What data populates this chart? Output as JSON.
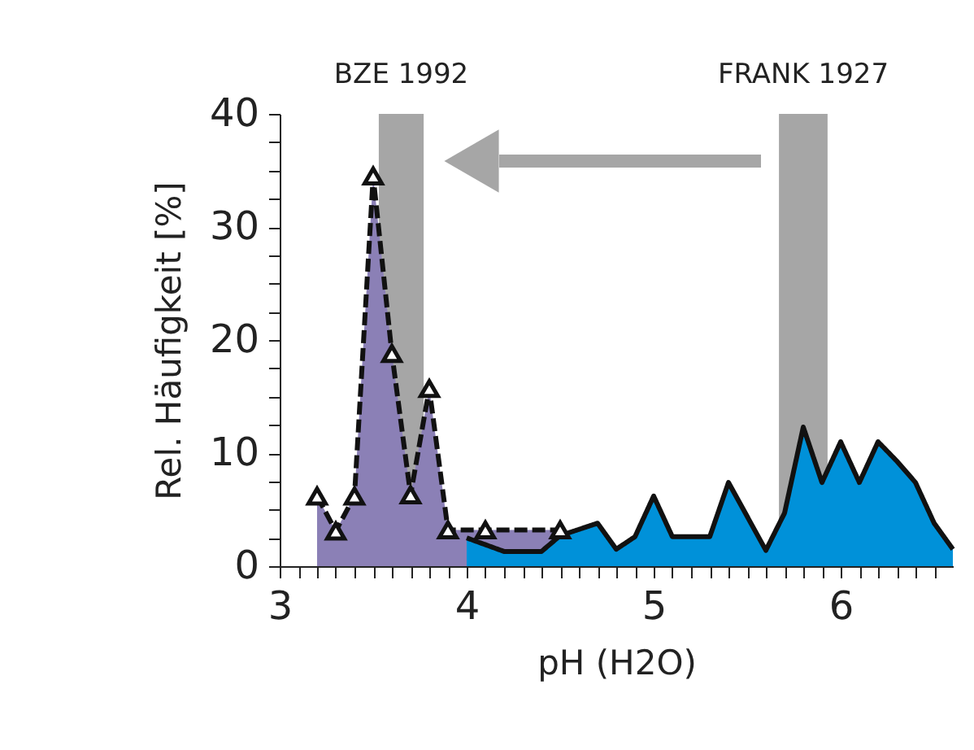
{
  "chart_data": {
    "type": "area",
    "xlabel": "pH (H2O)",
    "ylabel": "Rel. Häufigkeit [%]",
    "xlim": [
      3,
      6.6
    ],
    "xticks": [
      3,
      {
        "value": 3.1,
        "label": null
      },
      {
        "value": 3.2,
        "label": null
      },
      {
        "value": 3.3,
        "label": null
      },
      {
        "value": 3.4,
        "label": null
      },
      {
        "value": 3.5,
        "label": null
      },
      {
        "value": 3.6,
        "label": null
      },
      {
        "value": 3.7,
        "label": null
      },
      {
        "value": 3.8,
        "label": null
      },
      {
        "value": 3.9,
        "label": null
      },
      4,
      {
        "value": 4.1,
        "label": null
      },
      {
        "value": 4.2,
        "label": null
      },
      {
        "value": 4.3,
        "label": null
      },
      {
        "value": 4.4,
        "label": null
      },
      {
        "value": 4.5,
        "label": null
      },
      {
        "value": 4.6,
        "label": null
      },
      {
        "value": 4.7,
        "label": null
      },
      {
        "value": 4.8,
        "label": null
      },
      {
        "value": 4.9,
        "label": null
      },
      5,
      {
        "value": 5.1,
        "label": null
      },
      {
        "value": 5.2,
        "label": null
      },
      {
        "value": 5.3,
        "label": null
      },
      {
        "value": 5.4,
        "label": null
      },
      {
        "value": 5.5,
        "label": null
      },
      {
        "value": 5.6,
        "label": null
      },
      {
        "value": 5.7,
        "label": null
      },
      {
        "value": 5.8,
        "label": null
      },
      {
        "value": 5.9,
        "label": null
      },
      6,
      {
        "value": 6.1,
        "label": null
      },
      {
        "value": 6.2,
        "label": null
      },
      {
        "value": 6.3,
        "label": null
      },
      {
        "value": 6.4,
        "label": null
      },
      {
        "value": 6.5,
        "label": null
      }
    ],
    "ylim": [
      0,
      40
    ],
    "yticks": [
      0,
      {
        "value": 2.5,
        "label": null
      },
      {
        "value": 5,
        "label": null
      },
      {
        "value": 7.5,
        "label": null
      },
      10,
      {
        "value": 12.5,
        "label": null
      },
      {
        "value": 15,
        "label": null
      },
      {
        "value": 17.5,
        "label": null
      },
      20,
      {
        "value": 22.5,
        "label": null
      },
      {
        "value": 25,
        "label": null
      },
      {
        "value": 27.5,
        "label": null
      },
      30,
      {
        "value": 32.5,
        "label": null
      },
      {
        "value": 35,
        "label": null
      },
      {
        "value": 37.5,
        "label": null
      },
      40
    ],
    "grid": false,
    "series": [
      {
        "color": "#8b80b6",
        "marker": "triangle",
        "line_style": "dashed",
        "x": [
          3.2,
          3.3,
          3.4,
          3.5,
          3.6,
          3.7,
          3.8,
          3.9,
          4.1,
          4.5
        ],
        "values": [
          6.2,
          3.1,
          6.2,
          34.5,
          18.8,
          6.3,
          15.7,
          3.2,
          3.2,
          3.2
        ]
      },
      {
        "color": "#0091d9",
        "marker": "none",
        "line_style": "solid",
        "x": [
          4.0,
          4.2,
          4.4,
          4.5,
          4.7,
          4.8,
          4.9,
          5.0,
          5.1,
          5.3,
          5.4,
          5.6,
          5.7,
          5.8,
          5.9,
          6.0,
          6.1,
          6.2,
          6.3,
          6.4,
          6.5,
          6.6
        ],
        "values": [
          2.5,
          1.3,
          1.3,
          2.7,
          3.8,
          1.5,
          2.6,
          6.2,
          2.6,
          2.6,
          7.4,
          1.4,
          4.7,
          12.3,
          7.4,
          11,
          7.4,
          11,
          9.3,
          7.4,
          3.8,
          1.5
        ]
      }
    ],
    "bands": [
      {
        "axis": "x",
        "from": 3.53,
        "to": 3.77,
        "label": "BZE 1992",
        "color": "#a6a6a6"
      },
      {
        "axis": "x",
        "from": 5.67,
        "to": 5.93,
        "label": "FRANK 1927",
        "color": "#a6a6a6"
      }
    ]
  }
}
